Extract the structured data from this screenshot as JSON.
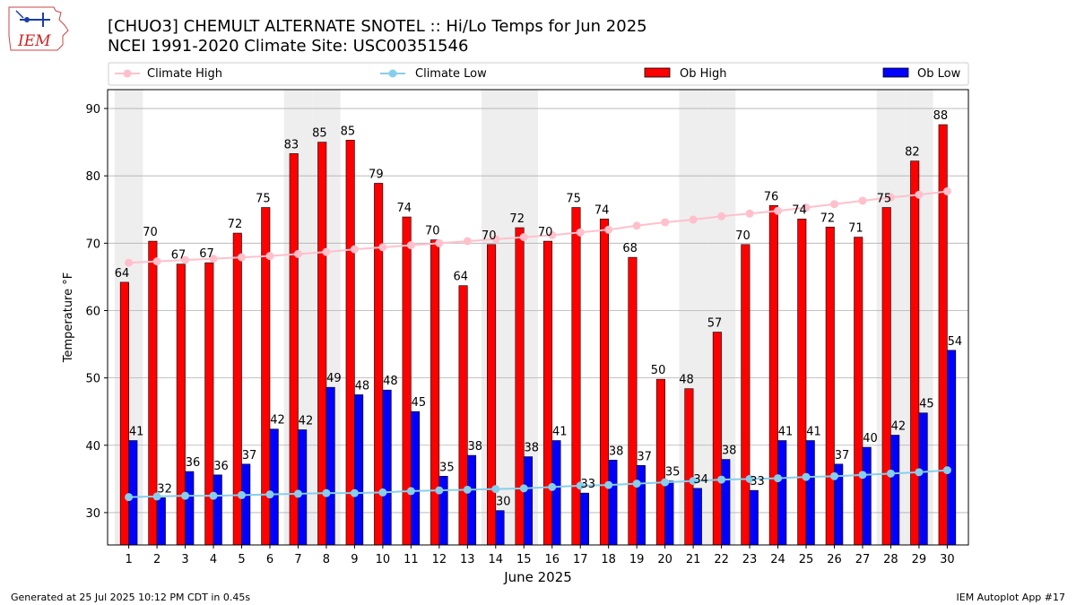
{
  "header": {
    "title_line1": "[CHUO3] CHEMULT ALTERNATE SNOTEL :: Hi/Lo Temps for Jun 2025",
    "title_line2": "NCEI 1991-2020 Climate Site: USC00351546",
    "logo_text": "IEM"
  },
  "footer": {
    "left": "Generated at 25 Jul 2025 10:12 PM CDT in 0.45s",
    "right": "IEM Autoplot App #17"
  },
  "colors": {
    "ob_high": "#ff0000",
    "ob_low": "#0000ff",
    "climate_high": "#ffc0cb",
    "climate_low": "#87ceeb",
    "weekend_band": "#eeeeee",
    "grid": "#b0b0b0"
  },
  "chart_data": {
    "type": "bar",
    "xlabel": "June 2025",
    "ylabel": "Temperature °F",
    "ylim": [
      25.2,
      92.8
    ],
    "yticks": [
      30,
      40,
      50,
      60,
      70,
      80,
      90
    ],
    "grid": "horizontal",
    "legend_position": "top",
    "categories": [
      "1",
      "2",
      "3",
      "4",
      "5",
      "6",
      "7",
      "8",
      "9",
      "10",
      "11",
      "12",
      "13",
      "14",
      "15",
      "16",
      "17",
      "18",
      "19",
      "20",
      "21",
      "22",
      "23",
      "24",
      "25",
      "26",
      "27",
      "28",
      "29",
      "30"
    ],
    "weekend_days": [
      1,
      7,
      8,
      14,
      15,
      21,
      22,
      28,
      29
    ],
    "series": [
      {
        "name": "Ob High",
        "kind": "bar",
        "values": [
          64.2,
          70.3,
          66.9,
          67.1,
          71.5,
          75.3,
          83.3,
          85.0,
          85.3,
          78.9,
          73.9,
          70.5,
          63.7,
          69.8,
          72.3,
          70.3,
          75.3,
          73.6,
          67.9,
          49.8,
          48.4,
          56.8,
          69.8,
          75.6,
          73.6,
          72.4,
          70.9,
          75.3,
          82.2,
          87.6
        ],
        "labels": [
          "64",
          "70",
          "67",
          "67",
          "72",
          "75",
          "83",
          "85",
          "85",
          "79",
          "74",
          "70",
          "64",
          "70",
          "72",
          "70",
          "75",
          "74",
          "68",
          "50",
          "48",
          "57",
          "70",
          "76",
          "74",
          "72",
          "71",
          "75",
          "82",
          "88"
        ]
      },
      {
        "name": "Ob Low",
        "kind": "bar",
        "values": [
          40.7,
          32.2,
          36.1,
          35.6,
          37.2,
          42.4,
          42.3,
          48.6,
          47.5,
          48.2,
          45.0,
          35.4,
          38.5,
          30.3,
          38.3,
          40.7,
          32.9,
          37.8,
          37.0,
          34.7,
          33.6,
          37.9,
          33.3,
          40.7,
          40.7,
          37.2,
          39.7,
          41.5,
          44.8,
          54.1
        ],
        "labels": [
          "41",
          "32",
          "36",
          "36",
          "37",
          "42",
          "42",
          "49",
          "48",
          "48",
          "45",
          "35",
          "38",
          "30",
          "38",
          "41",
          "33",
          "38",
          "37",
          "35",
          "34",
          "38",
          "33",
          "41",
          "41",
          "37",
          "40",
          "42",
          "45",
          "54"
        ]
      },
      {
        "name": "Climate High",
        "kind": "line",
        "values": [
          67.1,
          67.3,
          67.5,
          67.7,
          67.9,
          68.1,
          68.4,
          68.7,
          69.1,
          69.4,
          69.7,
          70.0,
          70.3,
          70.6,
          70.9,
          71.2,
          71.6,
          72.0,
          72.6,
          73.1,
          73.5,
          74.0,
          74.4,
          74.8,
          75.3,
          75.8,
          76.3,
          76.8,
          77.2,
          77.7
        ]
      },
      {
        "name": "Climate Low",
        "kind": "line",
        "values": [
          32.3,
          32.4,
          32.5,
          32.5,
          32.6,
          32.7,
          32.8,
          32.9,
          32.9,
          33.0,
          33.2,
          33.3,
          33.4,
          33.5,
          33.6,
          33.8,
          34.0,
          34.1,
          34.3,
          34.5,
          34.7,
          34.9,
          35.0,
          35.1,
          35.3,
          35.4,
          35.6,
          35.8,
          36.0,
          36.3
        ]
      }
    ]
  }
}
